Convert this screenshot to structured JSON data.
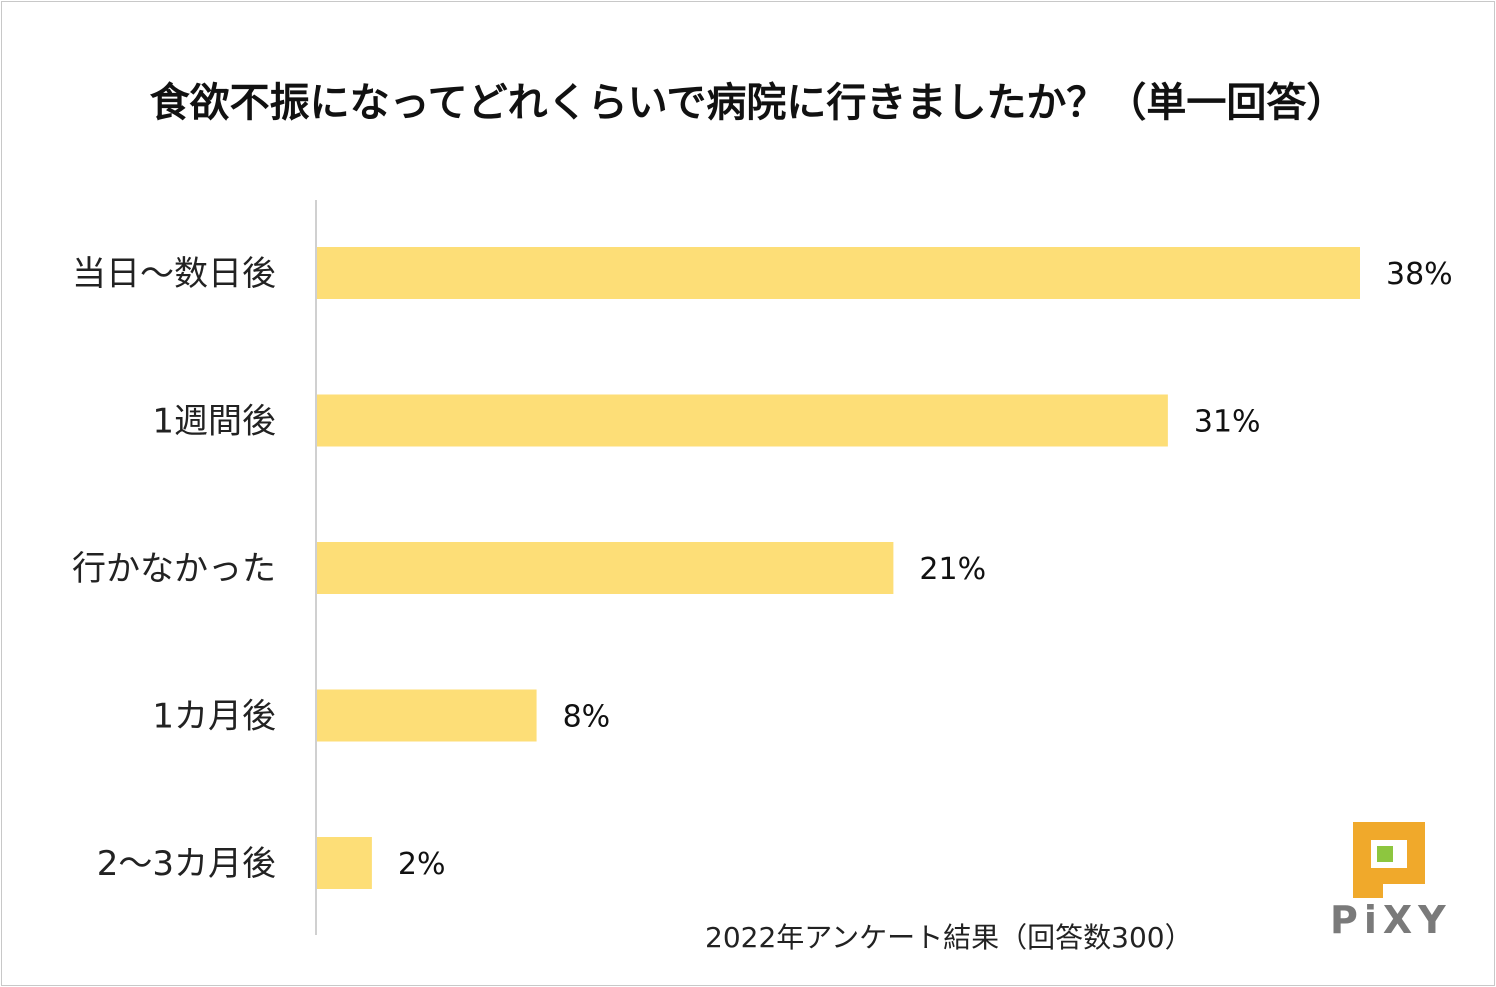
{
  "chart_data": {
    "type": "bar",
    "orientation": "horizontal",
    "title": "食欲不振になってどれくらいで病院に行きましたか？（単一回答）",
    "categories": [
      "当日〜数日後",
      "1週間後",
      "行かなかった",
      "1カ月後",
      "2〜3カ月後"
    ],
    "values": [
      38,
      31,
      21,
      8,
      2
    ],
    "value_labels": [
      "38%",
      "31%",
      "21%",
      "8%",
      "2%"
    ],
    "xlim": [
      0,
      38
    ],
    "xlabel": "",
    "ylabel": "",
    "grid": false,
    "bar_color": "#FDDE77"
  },
  "footnote": "2022年アンケート結果（回答数300）",
  "logo": {
    "text": "PiXY",
    "colors": {
      "main": "#F0A92B",
      "accent": "#8DC63F",
      "text": "#7A7A7A"
    }
  }
}
